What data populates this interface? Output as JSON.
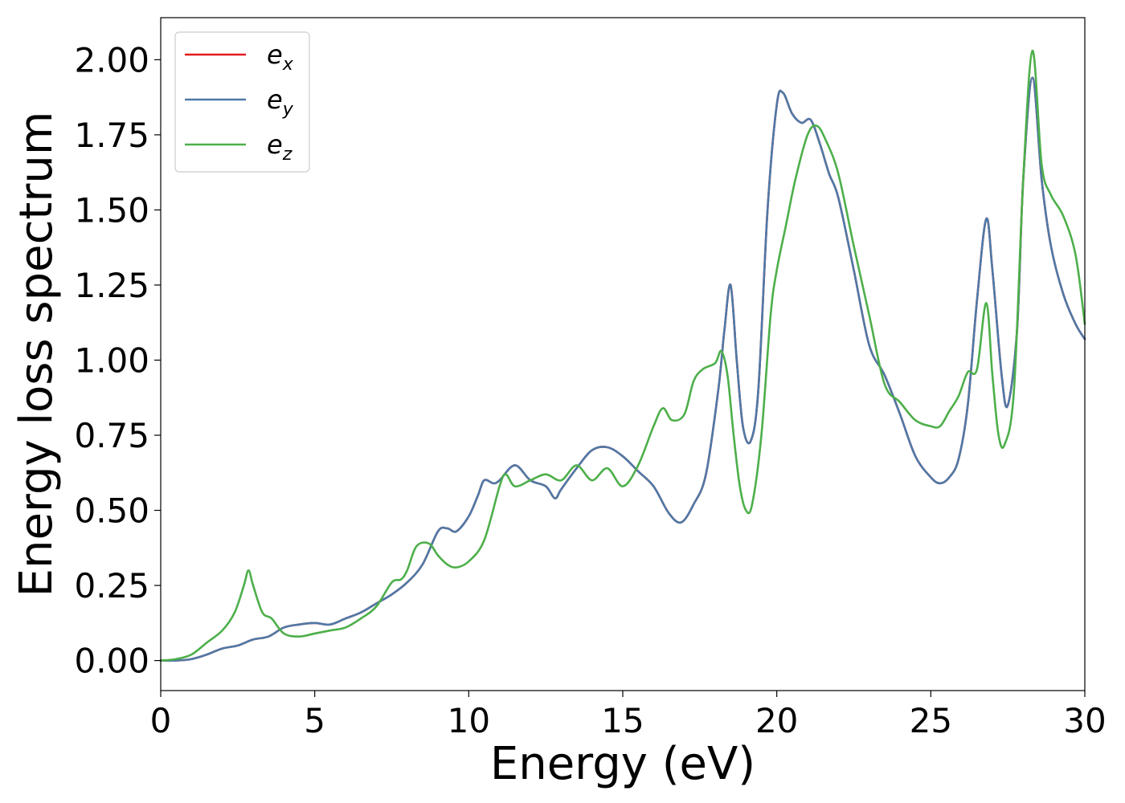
{
  "chart_data": {
    "type": "line",
    "title": "",
    "xlabel": "Energy (eV)",
    "ylabel": "Energy loss spectrum",
    "xlim": [
      0,
      30
    ],
    "ylim": [
      -0.1,
      2.14
    ],
    "xticks": [
      0,
      5,
      10,
      15,
      20,
      25,
      30
    ],
    "yticks": [
      0.0,
      0.25,
      0.5,
      0.75,
      1.0,
      1.25,
      1.5,
      1.75,
      2.0
    ],
    "xtick_labels": [
      "0",
      "5",
      "10",
      "15",
      "20",
      "25",
      "30"
    ],
    "ytick_labels": [
      "0.00",
      "0.25",
      "0.50",
      "0.75",
      "1.00",
      "1.25",
      "1.50",
      "1.75",
      "2.00"
    ],
    "grid": false,
    "legend_position": "top-left",
    "series": [
      {
        "name": "e_x",
        "legend_base": "e",
        "legend_sub": "x",
        "color": "#e41a1c",
        "x": [
          0,
          0.5,
          1.0,
          1.5,
          2.0,
          2.5,
          3.0,
          3.5,
          4.0,
          4.5,
          5.0,
          5.5,
          6.0,
          6.5,
          7.0,
          7.5,
          8.0,
          8.5,
          9.0,
          9.3,
          9.6,
          10.0,
          10.3,
          10.5,
          10.8,
          11.0,
          11.5,
          12.0,
          12.5,
          12.8,
          13.0,
          13.5,
          14.0,
          14.5,
          15.0,
          15.5,
          16.0,
          16.5,
          16.9,
          17.3,
          17.7,
          18.1,
          18.3,
          18.5,
          18.7,
          18.9,
          19.15,
          19.4,
          19.7,
          20.0,
          20.2,
          20.5,
          20.8,
          21.1,
          21.4,
          21.7,
          22.0,
          22.5,
          23.0,
          23.5,
          24.0,
          24.5,
          25.0,
          25.3,
          25.6,
          25.9,
          26.2,
          26.5,
          26.8,
          27.0,
          27.3,
          27.5,
          27.8,
          28.0,
          28.3,
          28.6,
          28.9,
          29.3,
          29.7,
          30.0
        ],
        "y": [
          0.0,
          0.0,
          0.005,
          0.02,
          0.04,
          0.05,
          0.07,
          0.08,
          0.11,
          0.12,
          0.125,
          0.12,
          0.14,
          0.16,
          0.19,
          0.22,
          0.26,
          0.32,
          0.43,
          0.44,
          0.43,
          0.48,
          0.55,
          0.6,
          0.59,
          0.6,
          0.65,
          0.6,
          0.58,
          0.54,
          0.57,
          0.64,
          0.7,
          0.71,
          0.68,
          0.63,
          0.58,
          0.49,
          0.46,
          0.52,
          0.62,
          0.9,
          1.1,
          1.25,
          1.0,
          0.78,
          0.73,
          0.9,
          1.5,
          1.85,
          1.89,
          1.82,
          1.79,
          1.8,
          1.72,
          1.62,
          1.54,
          1.3,
          1.05,
          0.95,
          0.82,
          0.68,
          0.61,
          0.59,
          0.61,
          0.67,
          0.85,
          1.2,
          1.47,
          1.3,
          0.95,
          0.85,
          1.1,
          1.6,
          1.94,
          1.6,
          1.38,
          1.22,
          1.12,
          1.07
        ]
      },
      {
        "name": "e_y",
        "legend_base": "e",
        "legend_sub": "y",
        "color": "#4e79a7",
        "x": [
          0,
          0.5,
          1.0,
          1.5,
          2.0,
          2.5,
          3.0,
          3.5,
          4.0,
          4.5,
          5.0,
          5.5,
          6.0,
          6.5,
          7.0,
          7.5,
          8.0,
          8.5,
          9.0,
          9.3,
          9.6,
          10.0,
          10.3,
          10.5,
          10.8,
          11.0,
          11.5,
          12.0,
          12.5,
          12.8,
          13.0,
          13.5,
          14.0,
          14.5,
          15.0,
          15.5,
          16.0,
          16.5,
          16.9,
          17.3,
          17.7,
          18.1,
          18.3,
          18.5,
          18.7,
          18.9,
          19.15,
          19.4,
          19.7,
          20.0,
          20.2,
          20.5,
          20.8,
          21.1,
          21.4,
          21.7,
          22.0,
          22.5,
          23.0,
          23.5,
          24.0,
          24.5,
          25.0,
          25.3,
          25.6,
          25.9,
          26.2,
          26.5,
          26.8,
          27.0,
          27.3,
          27.5,
          27.8,
          28.0,
          28.3,
          28.6,
          28.9,
          29.3,
          29.7,
          30.0
        ],
        "y": [
          0.0,
          0.0,
          0.005,
          0.02,
          0.04,
          0.05,
          0.07,
          0.08,
          0.11,
          0.12,
          0.125,
          0.12,
          0.14,
          0.16,
          0.19,
          0.22,
          0.26,
          0.32,
          0.43,
          0.44,
          0.43,
          0.48,
          0.55,
          0.6,
          0.59,
          0.6,
          0.65,
          0.6,
          0.58,
          0.54,
          0.57,
          0.64,
          0.7,
          0.71,
          0.68,
          0.63,
          0.58,
          0.49,
          0.46,
          0.52,
          0.62,
          0.9,
          1.1,
          1.25,
          1.0,
          0.78,
          0.73,
          0.9,
          1.5,
          1.85,
          1.89,
          1.82,
          1.79,
          1.8,
          1.72,
          1.62,
          1.54,
          1.3,
          1.05,
          0.95,
          0.82,
          0.68,
          0.61,
          0.59,
          0.61,
          0.67,
          0.85,
          1.2,
          1.47,
          1.3,
          0.95,
          0.85,
          1.1,
          1.6,
          1.94,
          1.6,
          1.38,
          1.22,
          1.12,
          1.07
        ]
      },
      {
        "name": "e_z",
        "legend_base": "e",
        "legend_sub": "z",
        "color": "#4daf4a",
        "x": [
          0,
          0.5,
          1.0,
          1.5,
          2.0,
          2.4,
          2.7,
          2.85,
          3.0,
          3.3,
          3.6,
          4.0,
          4.5,
          5.0,
          5.5,
          6.0,
          6.5,
          7.0,
          7.5,
          7.8,
          8.0,
          8.3,
          8.7,
          9.0,
          9.3,
          9.6,
          10.0,
          10.5,
          11.0,
          11.2,
          11.5,
          12.0,
          12.5,
          13.0,
          13.5,
          14.0,
          14.5,
          15.0,
          15.5,
          16.0,
          16.3,
          16.6,
          17.0,
          17.3,
          17.6,
          18.0,
          18.2,
          18.4,
          18.6,
          18.8,
          19.0,
          19.2,
          19.5,
          19.8,
          20.0,
          20.3,
          20.6,
          21.0,
          21.3,
          21.6,
          22.0,
          22.5,
          23.0,
          23.5,
          24.0,
          24.5,
          25.0,
          25.3,
          25.6,
          25.9,
          26.2,
          26.5,
          26.8,
          27.0,
          27.2,
          27.4,
          27.7,
          28.0,
          28.3,
          28.6,
          28.9,
          29.3,
          29.7,
          30.0
        ],
        "y": [
          0.0,
          0.005,
          0.02,
          0.06,
          0.1,
          0.16,
          0.25,
          0.3,
          0.25,
          0.16,
          0.14,
          0.09,
          0.08,
          0.09,
          0.1,
          0.11,
          0.14,
          0.18,
          0.26,
          0.27,
          0.3,
          0.38,
          0.39,
          0.35,
          0.32,
          0.31,
          0.33,
          0.4,
          0.58,
          0.62,
          0.58,
          0.6,
          0.62,
          0.6,
          0.65,
          0.6,
          0.64,
          0.58,
          0.65,
          0.78,
          0.84,
          0.8,
          0.82,
          0.93,
          0.97,
          0.99,
          1.03,
          0.95,
          0.75,
          0.58,
          0.5,
          0.52,
          0.75,
          1.15,
          1.3,
          1.45,
          1.6,
          1.75,
          1.78,
          1.73,
          1.62,
          1.38,
          1.15,
          0.92,
          0.86,
          0.8,
          0.78,
          0.78,
          0.83,
          0.88,
          0.96,
          0.97,
          1.19,
          0.95,
          0.75,
          0.72,
          0.9,
          1.6,
          2.03,
          1.65,
          1.55,
          1.48,
          1.35,
          1.12
        ]
      }
    ]
  }
}
